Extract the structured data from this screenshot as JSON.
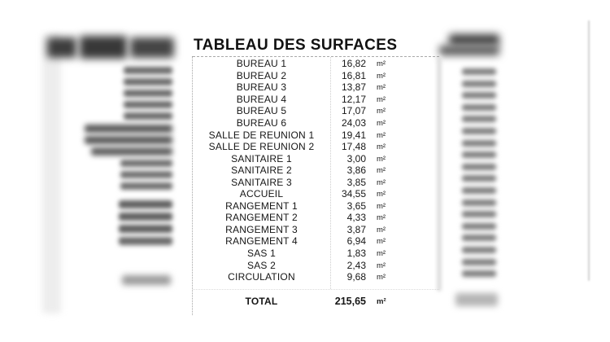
{
  "document": {
    "title": "TABLEAU DES SURFACES",
    "unit_label": "m²",
    "rows": [
      {
        "label": "BUREAU 1",
        "value": "16,82"
      },
      {
        "label": "BUREAU 2",
        "value": "16,81"
      },
      {
        "label": "BUREAU 3",
        "value": "13,87"
      },
      {
        "label": "BUREAU 4",
        "value": "12,17"
      },
      {
        "label": "BUREAU 5",
        "value": "17,07"
      },
      {
        "label": "BUREAU 6",
        "value": "24,03"
      },
      {
        "label": "SALLE DE REUNION 1",
        "value": "19,41"
      },
      {
        "label": "SALLE DE REUNION 2",
        "value": "17,48"
      },
      {
        "label": "SANITAIRE 1",
        "value": "3,00"
      },
      {
        "label": "SANITAIRE 2",
        "value": "3,86"
      },
      {
        "label": "SANITAIRE 3",
        "value": "3,85"
      },
      {
        "label": "ACCUEIL",
        "value": "34,55"
      },
      {
        "label": "RANGEMENT 1",
        "value": "3,65"
      },
      {
        "label": "RANGEMENT 2",
        "value": "4,33"
      },
      {
        "label": "RANGEMENT 3",
        "value": "3,87"
      },
      {
        "label": "RANGEMENT 4",
        "value": "6,94"
      },
      {
        "label": "SAS 1",
        "value": "1,83"
      },
      {
        "label": "SAS 2",
        "value": "2,43"
      },
      {
        "label": "CIRCULATION",
        "value": "9,68"
      }
    ],
    "total": {
      "label": "TOTAL",
      "value": "215,65"
    }
  }
}
